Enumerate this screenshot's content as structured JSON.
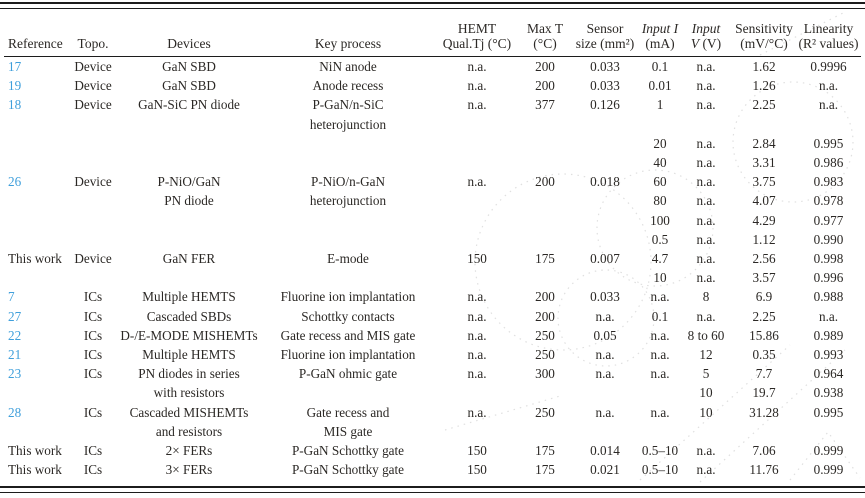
{
  "colors": {
    "reference_link": "#3f9fdb",
    "body_text": "#2b2825",
    "rule": "#1c1c1c"
  },
  "header": {
    "reference": "Reference",
    "topo": "Topo.",
    "devices": "Devices",
    "key_process": "Key process",
    "hemt_line1": "HEMT",
    "hemt_line2": "Qual.Tj (°C)",
    "max_t_line1": "Max T",
    "max_t_line2": "(°C)",
    "sensor_line1": "Sensor",
    "sensor_line2": "size (mm²)",
    "input_i_line1": "Input I",
    "input_i_line2": "(mA)",
    "input_v_line1": "Input",
    "input_v_line2_sym": "V",
    "input_v_line2_unit": " (V)",
    "sensitivity_line1": "Sensitivity",
    "sensitivity_line2": "(mV/°C)",
    "linearity_line1": "Linearity",
    "linearity_line2": "(R² values)"
  },
  "rows": [
    [
      "17",
      "Device",
      "GaN SBD",
      "NiN anode",
      "n.a.",
      "200",
      "0.033",
      "0.1",
      "n.a.",
      "1.62",
      "0.9996"
    ],
    [
      "19",
      "Device",
      "GaN SBD",
      "Anode recess",
      "n.a.",
      "200",
      "0.033",
      "0.01",
      "n.a.",
      "1.26",
      "n.a."
    ],
    [
      "18",
      "Device",
      "GaN-SiC PN diode",
      "P-GaN/n-SiC",
      "n.a.",
      "377",
      "0.126",
      "1",
      "n.a.",
      "2.25",
      "n.a."
    ],
    [
      "",
      "",
      "",
      "heterojunction",
      "",
      "",
      "",
      "",
      "",
      "",
      ""
    ],
    [
      "",
      "",
      "",
      "",
      "",
      "",
      "",
      "20",
      "n.a.",
      "2.84",
      "0.995"
    ],
    [
      "",
      "",
      "",
      "",
      "",
      "",
      "",
      "40",
      "n.a.",
      "3.31",
      "0.986"
    ],
    [
      "26",
      "Device",
      "P-NiO/GaN",
      "P-NiO/n-GaN",
      "n.a.",
      "200",
      "0.018",
      "60",
      "n.a.",
      "3.75",
      "0.983"
    ],
    [
      "",
      "",
      "PN diode",
      "heterojunction",
      "",
      "",
      "",
      "80",
      "n.a.",
      "4.07",
      "0.978"
    ],
    [
      "",
      "",
      "",
      "",
      "",
      "",
      "",
      "100",
      "n.a.",
      "4.29",
      "0.977"
    ],
    [
      "",
      "",
      "",
      "",
      "",
      "",
      "",
      "0.5",
      "n.a.",
      "1.12",
      "0.990"
    ],
    [
      "This work",
      "Device",
      "GaN FER",
      "E-mode",
      "150",
      "175",
      "0.007",
      "4.7",
      "n.a.",
      "2.56",
      "0.998"
    ],
    [
      "",
      "",
      "",
      "",
      "",
      "",
      "",
      "10",
      "n.a.",
      "3.57",
      "0.996"
    ],
    [
      "7",
      "ICs",
      "Multiple HEMTS",
      "Fluorine ion implantation",
      "n.a.",
      "200",
      "0.033",
      "n.a.",
      "8",
      "6.9",
      "0.988"
    ],
    [
      "27",
      "ICs",
      "Cascaded SBDs",
      "Schottky contacts",
      "n.a.",
      "200",
      "n.a.",
      "0.1",
      "n.a.",
      "2.25",
      "n.a."
    ],
    [
      "22",
      "ICs",
      "D-/E-MODE MISHEMTs",
      "Gate recess and MIS gate",
      "n.a.",
      "250",
      "0.05",
      "n.a.",
      "8 to 60",
      "15.86",
      "0.989"
    ],
    [
      "21",
      "ICs",
      "Multiple HEMTS",
      "Fluorine ion implantation",
      "n.a.",
      "250",
      "n.a.",
      "n.a.",
      "12",
      "0.35",
      "0.993"
    ],
    [
      "23",
      "ICs",
      "PN diodes in series",
      "P-GaN ohmic gate",
      "n.a.",
      "300",
      "n.a.",
      "n.a.",
      "5",
      "7.7",
      "0.964"
    ],
    [
      "",
      "",
      "with resistors",
      "",
      "",
      "",
      "",
      "",
      "10",
      "19.7",
      "0.938"
    ],
    [
      "28",
      "ICs",
      "Cascaded MISHEMTs",
      "Gate recess and",
      "n.a.",
      "250",
      "n.a.",
      "n.a.",
      "10",
      "31.28",
      "0.995"
    ],
    [
      "",
      "",
      "and resistors",
      "MIS gate",
      "",
      "",
      "",
      "",
      "",
      "",
      ""
    ],
    [
      "This work",
      "ICs",
      "2× FERs",
      "P-GaN Schottky gate",
      "150",
      "175",
      "0.014",
      "0.5–10",
      "n.a.",
      "7.06",
      "0.999"
    ],
    [
      "This work",
      "ICs",
      "3× FERs",
      "P-GaN Schottky gate",
      "150",
      "175",
      "0.021",
      "0.5–10",
      "n.a.",
      "11.76",
      "0.999"
    ]
  ]
}
